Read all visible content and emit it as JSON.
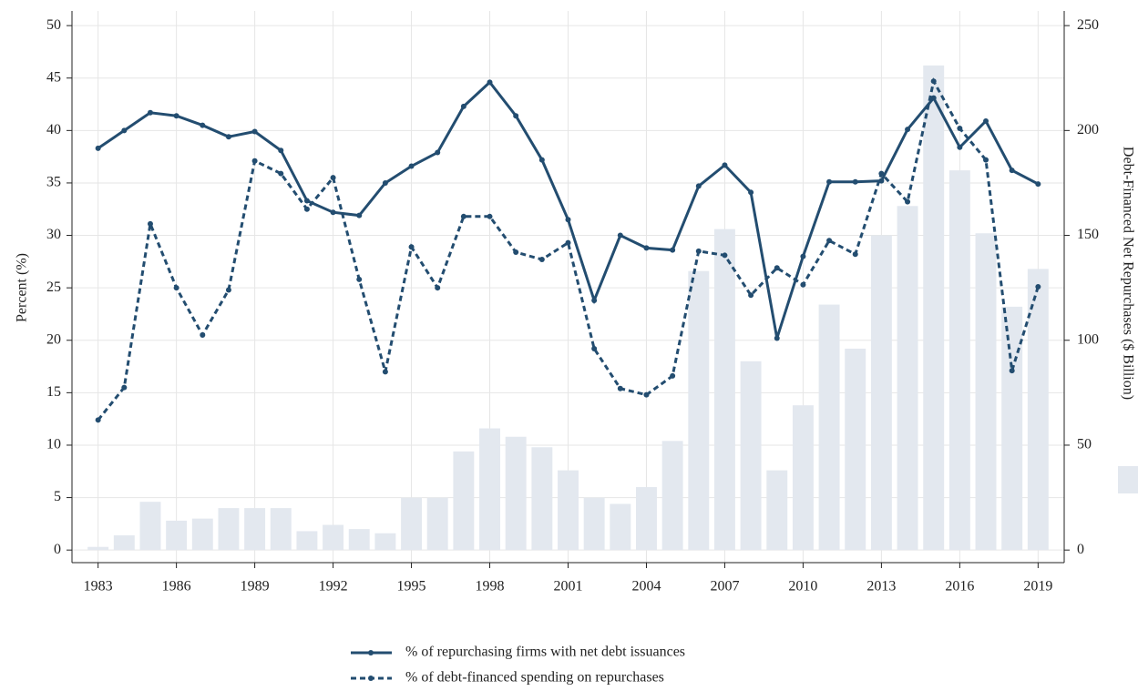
{
  "chart_data": {
    "type": "line",
    "x": [
      1983,
      1984,
      1985,
      1986,
      1987,
      1988,
      1989,
      1990,
      1991,
      1992,
      1993,
      1994,
      1995,
      1996,
      1997,
      1998,
      1999,
      2000,
      2001,
      2002,
      2003,
      2004,
      2005,
      2006,
      2007,
      2008,
      2009,
      2010,
      2011,
      2012,
      2013,
      2014,
      2015,
      2016,
      2017,
      2018,
      2019
    ],
    "ylabel": "Percent (%)",
    "y2label": "Debt-Financed Net Repurchases ($ Billion)",
    "series": [
      {
        "type": "bar",
        "axis": "y2",
        "color": "#e3e8ef",
        "values": [
          1.5,
          7,
          23,
          14,
          15,
          20,
          20,
          20,
          9,
          12,
          10,
          8,
          25,
          25,
          47,
          58,
          54,
          49,
          38,
          25,
          22,
          30,
          52,
          133,
          153,
          90,
          38,
          69,
          117,
          96,
          150,
          164,
          231,
          181,
          151,
          116,
          134
        ]
      },
      {
        "name": "% of repurchasing firms with net debt issuances",
        "color": "#234d70",
        "dash": "solid",
        "values": [
          38.3,
          40.0,
          41.7,
          41.4,
          40.5,
          39.4,
          39.9,
          38.1,
          33.3,
          32.2,
          31.9,
          35.0,
          36.6,
          37.9,
          42.3,
          44.6,
          41.4,
          37.2,
          31.5,
          23.8,
          30.0,
          28.8,
          28.6,
          34.7,
          36.7,
          34.1,
          20.2,
          28.0,
          35.1,
          35.1,
          35.2,
          40.1,
          43.1,
          38.4,
          40.9,
          36.2,
          34.9
        ]
      },
      {
        "name": "% of debt-financed spending on repurchases",
        "color": "#234d70",
        "dash": "dashed",
        "values": [
          12.4,
          15.5,
          31.1,
          25.0,
          20.5,
          24.8,
          37.1,
          35.9,
          32.5,
          35.5,
          25.8,
          17.0,
          28.9,
          25.0,
          31.8,
          31.8,
          28.4,
          27.7,
          29.3,
          19.2,
          15.4,
          14.8,
          16.6,
          28.5,
          28.1,
          24.3,
          26.9,
          25.3,
          29.5,
          28.2,
          35.9,
          33.2,
          44.7,
          40.2,
          37.2,
          17.1,
          25.1
        ]
      }
    ],
    "xlim": [
      1982,
      2020
    ],
    "xticks": [
      1983,
      1986,
      1989,
      1992,
      1995,
      1998,
      2001,
      2004,
      2007,
      2010,
      2013,
      2016,
      2019
    ],
    "ylim": [
      -1.2,
      51.4
    ],
    "yticks": [
      0,
      5,
      10,
      15,
      20,
      25,
      30,
      35,
      40,
      45,
      50
    ],
    "y2lim": [
      -6,
      257
    ],
    "y2ticks": [
      0,
      50,
      100,
      150,
      200,
      250
    ],
    "grid": true,
    "legend": "bottom"
  }
}
